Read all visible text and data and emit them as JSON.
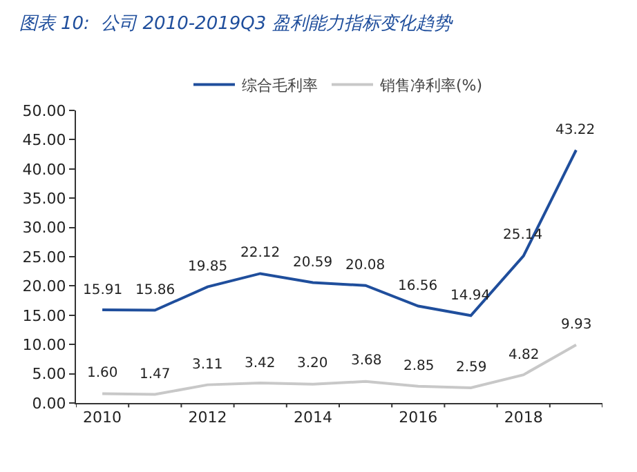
{
  "chart_data": {
    "type": "line",
    "title": "图表 10:  公司 2010-2019Q3 盈利能力指标变化趋势",
    "categories": [
      "2010",
      null,
      "2012",
      null,
      "2014",
      null,
      "2016",
      null,
      "2018",
      null
    ],
    "series": [
      {
        "name": "综合毛利率",
        "color": "#1f4e9c",
        "values": [
          15.91,
          15.86,
          19.85,
          22.12,
          20.59,
          20.08,
          16.56,
          14.94,
          25.14,
          43.22
        ],
        "value_labels": [
          "15.91",
          "15.86",
          "19.85",
          "22.12",
          "20.59",
          "20.08",
          "16.56",
          "14.94",
          "25.14",
          "43.22"
        ]
      },
      {
        "name": "销售净利率(%)",
        "color": "#c8c8c8",
        "values": [
          1.6,
          1.47,
          3.11,
          3.42,
          3.2,
          3.68,
          2.85,
          2.59,
          4.82,
          9.93
        ],
        "value_labels": [
          "1.60",
          "1.47",
          "3.11",
          "3.42",
          "3.20",
          "3.68",
          "2.85",
          "2.59",
          "4.82",
          "9.93"
        ]
      }
    ],
    "ylim": [
      0,
      50
    ],
    "yticks": [
      {
        "value": 0,
        "label": "0.00"
      },
      {
        "value": 5,
        "label": "5.00"
      },
      {
        "value": 10,
        "label": "10.00"
      },
      {
        "value": 15,
        "label": "15.00"
      },
      {
        "value": 20,
        "label": "20.00"
      },
      {
        "value": 25,
        "label": "25.00"
      },
      {
        "value": 30,
        "label": "30.00"
      },
      {
        "value": 35,
        "label": "35.00"
      },
      {
        "value": 40,
        "label": "40.00"
      },
      {
        "value": 45,
        "label": "45.00"
      },
      {
        "value": 50,
        "label": "50.00"
      }
    ],
    "legend": "top",
    "marker": "none",
    "line_style": "solid"
  }
}
